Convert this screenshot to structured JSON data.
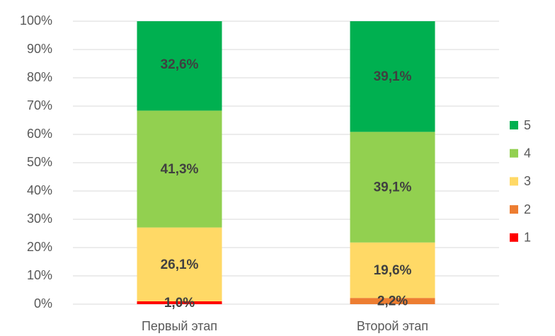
{
  "chart_data": {
    "type": "stacked_bar",
    "categories": [
      "Первый этап",
      "Второй этап"
    ],
    "series": [
      {
        "name": "1",
        "color": "#ff0000",
        "values": [
          1.0,
          null
        ],
        "value_labels": [
          "1,0%",
          null
        ]
      },
      {
        "name": "2",
        "color": "#ed7d31",
        "values": [
          null,
          2.2
        ],
        "value_labels": [
          null,
          "2,2%"
        ]
      },
      {
        "name": "3",
        "color": "#ffd966",
        "values": [
          26.1,
          19.6
        ],
        "value_labels": [
          "26,1%",
          "19,6%"
        ]
      },
      {
        "name": "4",
        "color": "#92d050",
        "values": [
          41.3,
          39.1
        ],
        "value_labels": [
          "41,3%",
          "39,1%"
        ]
      },
      {
        "name": "5",
        "color": "#00b050",
        "values": [
          32.6,
          39.1
        ],
        "value_labels": [
          "32,6%",
          "39,1%"
        ]
      }
    ],
    "ylim": [
      0,
      100
    ],
    "yticks": [
      {
        "value": 0,
        "label": "0%"
      },
      {
        "value": 10,
        "label": "10%"
      },
      {
        "value": 20,
        "label": "20%"
      },
      {
        "value": 30,
        "label": "30%"
      },
      {
        "value": 40,
        "label": "40%"
      },
      {
        "value": 50,
        "label": "50%"
      },
      {
        "value": 60,
        "label": "60%"
      },
      {
        "value": 70,
        "label": "70%"
      },
      {
        "value": 80,
        "label": "80%"
      },
      {
        "value": 90,
        "label": "90%"
      },
      {
        "value": 100,
        "label": "100%"
      }
    ],
    "grid": true,
    "legend": "right"
  }
}
